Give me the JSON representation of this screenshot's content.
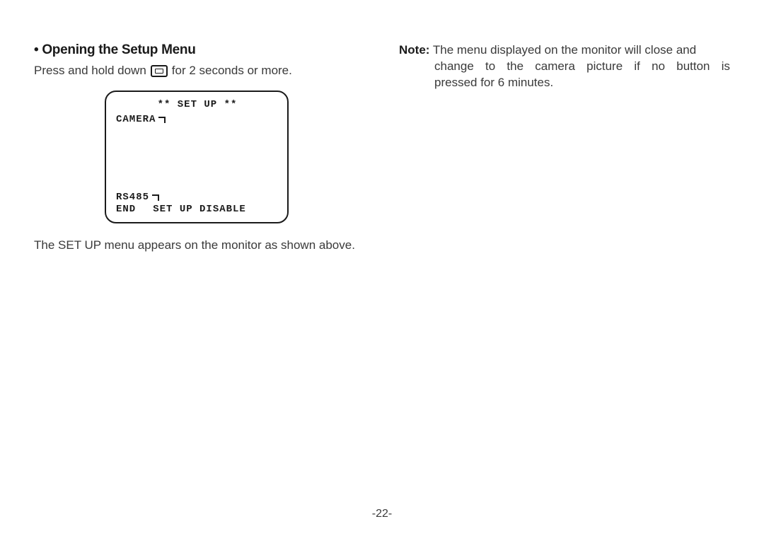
{
  "heading": "• Opening the Setup Menu",
  "instruction_before": "Press and hold down",
  "instruction_after": "for 2 seconds or more.",
  "menu": {
    "title": "** SET UP **",
    "line_camera": "CAMERA",
    "line_rs485": "RS485",
    "bottom_end": "END",
    "bottom_disable": "SET UP DISABLE"
  },
  "below_text": "The SET UP menu appears on the monitor as shown above.",
  "note": {
    "label": "Note:",
    "line1_rest": " The menu displayed on the monitor will close and",
    "line2": "change to the camera picture if no button is",
    "line3": "pressed for 6 minutes."
  },
  "page_number": "-22-",
  "colors": {
    "text_primary": "#1a1a1a",
    "text_body": "#3a3a3a",
    "background": "#ffffff",
    "border": "#1a1a1a"
  },
  "typography": {
    "heading_fontsize": 19,
    "body_fontsize": 17,
    "mono_fontsize": 14,
    "page_number_fontsize": 16
  }
}
